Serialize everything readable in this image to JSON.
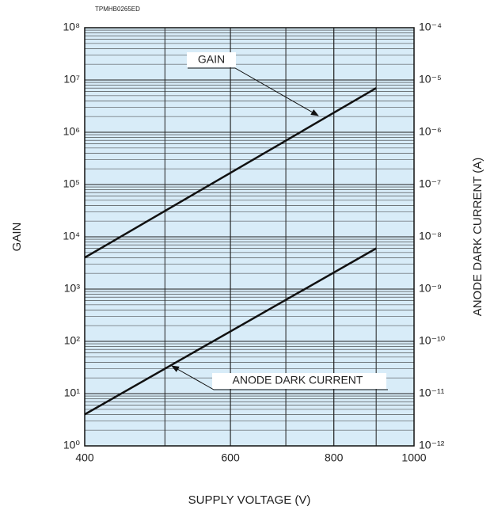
{
  "chart_data": {
    "type": "line",
    "code": "TPMHB0265ED",
    "x_label": "SUPPLY VOLTAGE (V)",
    "y_label": "GAIN",
    "y2_label": "ANODE DARK CURRENT (A)",
    "x_log": true,
    "y_log": true,
    "y2_log": true,
    "grid": true,
    "minor_grid": true,
    "background": "#d8ecf8",
    "xlim": [
      400,
      1000
    ],
    "xticks": [
      400,
      600,
      800,
      1000
    ],
    "ylim": [
      1,
      100000000
    ],
    "yticks": [
      {
        "value": 1,
        "label": "10⁰"
      },
      {
        "value": 10,
        "label": "10¹"
      },
      {
        "value": 100,
        "label": "10²"
      },
      {
        "value": 1000,
        "label": "10³"
      },
      {
        "value": 10000,
        "label": "10⁴"
      },
      {
        "value": 100000,
        "label": "10⁵"
      },
      {
        "value": 1000000,
        "label": "10⁶"
      },
      {
        "value": 10000000,
        "label": "10⁷"
      },
      {
        "value": 100000000,
        "label": "10⁸"
      }
    ],
    "y2lim": [
      1e-12,
      0.0001
    ],
    "y2ticks": [
      {
        "value": 1e-12,
        "label": "10⁻¹²"
      },
      {
        "value": 1e-11,
        "label": "10⁻¹¹"
      },
      {
        "value": 1e-10,
        "label": "10⁻¹⁰"
      },
      {
        "value": 1e-09,
        "label": "10⁻⁹"
      },
      {
        "value": 1e-08,
        "label": "10⁻⁸"
      },
      {
        "value": 1e-07,
        "label": "10⁻⁷"
      },
      {
        "value": 1e-06,
        "label": "10⁻⁶"
      },
      {
        "value": 1e-05,
        "label": "10⁻⁵"
      },
      {
        "value": 0.0001,
        "label": "10⁻⁴"
      }
    ],
    "x": [
      400,
      900
    ],
    "series": [
      {
        "name": "GAIN",
        "color": "#111111",
        "values": [
          4000,
          7000000
        ]
      },
      {
        "name": "ANODE DARK CURRENT",
        "color": "#111111",
        "axis": "y2",
        "values": [
          4e-12,
          6e-09
        ]
      }
    ]
  }
}
